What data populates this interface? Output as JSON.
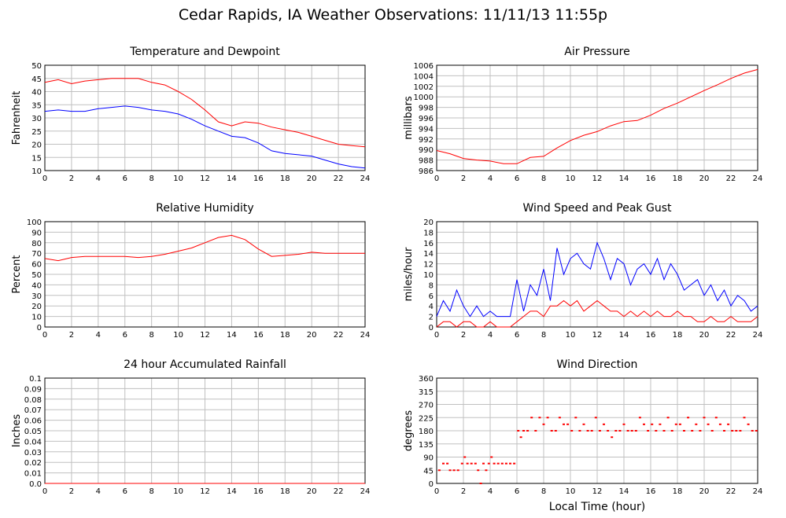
{
  "page_title": "Cedar Rapids, IA Weather Observations: 11/11/13 11:55p",
  "colors": {
    "red": "#ff0000",
    "blue": "#0000ff",
    "grid": "#c0c0c0",
    "frame": "#000000"
  },
  "chart_data": [
    {
      "id": "temp",
      "type": "line",
      "title": "Temperature and Dewpoint",
      "xlabel": "",
      "ylabel": "Fahrenheit",
      "xlim": [
        0,
        24
      ],
      "ylim": [
        10,
        50
      ],
      "xticks": [
        0,
        2,
        4,
        6,
        8,
        10,
        12,
        14,
        16,
        18,
        20,
        22,
        24
      ],
      "yticks": [
        10,
        15,
        20,
        25,
        30,
        35,
        40,
        45,
        50
      ],
      "series": [
        {
          "color": "#ff0000",
          "x": [
            0,
            1,
            2,
            3,
            4,
            5,
            6,
            7,
            8,
            9,
            10,
            11,
            12,
            13,
            14,
            15,
            16,
            17,
            18,
            19,
            20,
            21,
            22,
            23,
            24
          ],
          "values": [
            43.5,
            44.5,
            43,
            44,
            44.5,
            45,
            45,
            45,
            43.5,
            42.5,
            40,
            37,
            33,
            28.5,
            27,
            28.5,
            28,
            26.5,
            25.5,
            24.5,
            23,
            21.5,
            20,
            19.5,
            19
          ]
        },
        {
          "color": "#0000ff",
          "x": [
            0,
            1,
            2,
            3,
            4,
            5,
            6,
            7,
            8,
            9,
            10,
            11,
            12,
            13,
            14,
            15,
            16,
            17,
            18,
            19,
            20,
            21,
            22,
            23,
            24
          ],
          "values": [
            32.5,
            33,
            32.5,
            32.5,
            33.5,
            34,
            34.5,
            34,
            33,
            32.5,
            31.5,
            29.5,
            27,
            25,
            23,
            22.5,
            20.5,
            17.5,
            16.5,
            16,
            15.5,
            14,
            12.5,
            11.5,
            11
          ]
        }
      ]
    },
    {
      "id": "pressure",
      "type": "line",
      "title": "Air Pressure",
      "xlabel": "",
      "ylabel": "millibars",
      "xlim": [
        0,
        24
      ],
      "ylim": [
        986,
        1006
      ],
      "xticks": [
        0,
        2,
        4,
        6,
        8,
        10,
        12,
        14,
        16,
        18,
        20,
        22,
        24
      ],
      "yticks": [
        986,
        988,
        990,
        992,
        994,
        996,
        998,
        1000,
        1002,
        1004,
        1006
      ],
      "series": [
        {
          "color": "#ff0000",
          "x": [
            0,
            1,
            2,
            3,
            4,
            5,
            6,
            7,
            8,
            9,
            10,
            11,
            12,
            13,
            14,
            15,
            16,
            17,
            18,
            19,
            20,
            21,
            22,
            23,
            24
          ],
          "values": [
            989.8,
            989.2,
            988.3,
            988,
            987.8,
            987.3,
            987.3,
            988.5,
            988.7,
            990.3,
            991.7,
            992.7,
            993.4,
            994.5,
            995.3,
            995.5,
            996.5,
            997.8,
            998.8,
            1000,
            1001.2,
            1002.3,
            1003.5,
            1004.5,
            1005.2
          ]
        }
      ]
    },
    {
      "id": "rh",
      "type": "line",
      "title": "Relative Humidity",
      "xlabel": "",
      "ylabel": "Percent",
      "xlim": [
        0,
        24
      ],
      "ylim": [
        0,
        100
      ],
      "xticks": [
        0,
        2,
        4,
        6,
        8,
        10,
        12,
        14,
        16,
        18,
        20,
        22,
        24
      ],
      "yticks": [
        0,
        10,
        20,
        30,
        40,
        50,
        60,
        70,
        80,
        90,
        100
      ],
      "series": [
        {
          "color": "#ff0000",
          "x": [
            0,
            1,
            2,
            3,
            4,
            5,
            6,
            7,
            8,
            9,
            10,
            11,
            12,
            13,
            14,
            15,
            16,
            17,
            18,
            19,
            20,
            21,
            22,
            23,
            24
          ],
          "values": [
            65,
            63,
            66,
            67,
            67,
            67,
            67,
            66,
            67,
            69,
            72,
            75,
            80,
            85,
            87,
            83,
            74,
            67,
            68,
            69,
            71,
            70,
            70,
            70,
            70
          ]
        }
      ]
    },
    {
      "id": "wind",
      "type": "line",
      "title": "Wind Speed and Peak Gust",
      "xlabel": "",
      "ylabel": "miles/hour",
      "xlim": [
        0,
        24
      ],
      "ylim": [
        0,
        20
      ],
      "xticks": [
        0,
        2,
        4,
        6,
        8,
        10,
        12,
        14,
        16,
        18,
        20,
        22,
        24
      ],
      "yticks": [
        0,
        2,
        4,
        6,
        8,
        10,
        12,
        14,
        16,
        18,
        20
      ],
      "series": [
        {
          "color": "#0000ff",
          "x": [
            0,
            0.5,
            1,
            1.5,
            2,
            2.5,
            3,
            3.5,
            4,
            4.5,
            5,
            5.5,
            6,
            6.5,
            7,
            7.5,
            8,
            8.5,
            9,
            9.5,
            10,
            10.5,
            11,
            11.5,
            12,
            12.5,
            13,
            13.5,
            14,
            14.5,
            15,
            15.5,
            16,
            16.5,
            17,
            17.5,
            18,
            18.5,
            19,
            19.5,
            20,
            20.5,
            21,
            21.5,
            22,
            22.5,
            23,
            23.5,
            24
          ],
          "values": [
            2,
            5,
            3,
            7,
            4,
            2,
            4,
            2,
            3,
            2,
            2,
            2,
            9,
            3,
            8,
            6,
            11,
            5,
            15,
            10,
            13,
            14,
            12,
            11,
            16,
            13,
            9,
            13,
            12,
            8,
            11,
            12,
            10,
            13,
            9,
            12,
            10,
            7,
            8,
            9,
            6,
            8,
            5,
            7,
            4,
            6,
            5,
            3,
            4
          ]
        },
        {
          "color": "#ff0000",
          "x": [
            0,
            0.5,
            1,
            1.5,
            2,
            2.5,
            3,
            3.5,
            4,
            4.5,
            5,
            5.5,
            6,
            6.5,
            7,
            7.5,
            8,
            8.5,
            9,
            9.5,
            10,
            10.5,
            11,
            11.5,
            12,
            12.5,
            13,
            13.5,
            14,
            14.5,
            15,
            15.5,
            16,
            16.5,
            17,
            17.5,
            18,
            18.5,
            19,
            19.5,
            20,
            20.5,
            21,
            21.5,
            22,
            22.5,
            23,
            23.5,
            24
          ],
          "values": [
            0,
            1,
            1,
            0,
            1,
            1,
            0,
            0,
            1,
            0,
            0,
            0,
            1,
            2,
            3,
            3,
            2,
            4,
            4,
            5,
            4,
            5,
            3,
            4,
            5,
            4,
            3,
            3,
            2,
            3,
            2,
            3,
            2,
            3,
            2,
            2,
            3,
            2,
            2,
            1,
            1,
            2,
            1,
            1,
            2,
            1,
            1,
            1,
            2
          ]
        }
      ]
    },
    {
      "id": "rain",
      "type": "line",
      "title": "24 hour Accumulated Rainfall",
      "xlabel": "",
      "ylabel": "Inches",
      "xlim": [
        0,
        24
      ],
      "ylim": [
        0,
        0.1
      ],
      "xticks": [
        0,
        2,
        4,
        6,
        8,
        10,
        12,
        14,
        16,
        18,
        20,
        22,
        24
      ],
      "yticks": [
        "0.0",
        "0.01",
        "0.02",
        "0.03",
        "0.04",
        "0.05",
        "0.06",
        "0.07",
        "0.08",
        "0.09",
        "0.1"
      ],
      "series": [
        {
          "color": "#ff0000",
          "x": [
            0,
            24
          ],
          "values": [
            0,
            0
          ]
        }
      ]
    },
    {
      "id": "wdir",
      "type": "scatter",
      "title": "Wind Direction",
      "xlabel": "Local Time (hour)",
      "ylabel": "degrees",
      "xlim": [
        0,
        24
      ],
      "ylim": [
        0,
        360
      ],
      "xticks": [
        0,
        2,
        4,
        6,
        8,
        10,
        12,
        14,
        16,
        18,
        20,
        22,
        24
      ],
      "yticks": [
        0,
        45,
        90,
        135,
        180,
        225,
        270,
        315,
        360
      ],
      "series": [
        {
          "color": "#ff0000",
          "x": [
            0.2,
            0.5,
            0.8,
            1.0,
            1.3,
            1.6,
            1.9,
            2.1,
            2.3,
            2.6,
            2.9,
            3.1,
            3.3,
            3.5,
            3.7,
            3.9,
            4.1,
            4.3,
            4.6,
            4.9,
            5.2,
            5.5,
            5.8,
            6.1,
            6.3,
            6.5,
            6.8,
            7.1,
            7.4,
            7.7,
            8.0,
            8.3,
            8.6,
            8.9,
            9.2,
            9.5,
            9.8,
            10.1,
            10.4,
            10.7,
            11.0,
            11.3,
            11.6,
            11.9,
            12.2,
            12.5,
            12.8,
            13.1,
            13.4,
            13.7,
            14.0,
            14.3,
            14.6,
            14.9,
            15.2,
            15.5,
            15.8,
            16.1,
            16.4,
            16.7,
            17.0,
            17.3,
            17.6,
            17.9,
            18.2,
            18.5,
            18.8,
            19.1,
            19.4,
            19.7,
            20.0,
            20.3,
            20.6,
            20.9,
            21.2,
            21.5,
            21.8,
            22.1,
            22.4,
            22.7,
            23.0,
            23.3,
            23.6,
            23.9
          ],
          "values": [
            45,
            68,
            68,
            45,
            45,
            45,
            68,
            90,
            68,
            68,
            68,
            45,
            0,
            68,
            45,
            68,
            90,
            68,
            68,
            68,
            68,
            68,
            68,
            180,
            158,
            180,
            180,
            225,
            180,
            225,
            202,
            225,
            180,
            180,
            225,
            202,
            202,
            180,
            225,
            180,
            202,
            180,
            180,
            225,
            180,
            202,
            180,
            158,
            180,
            180,
            202,
            180,
            180,
            180,
            225,
            202,
            180,
            202,
            180,
            202,
            180,
            225,
            180,
            202,
            202,
            180,
            225,
            180,
            202,
            180,
            225,
            202,
            180,
            225,
            202,
            180,
            202,
            180,
            180,
            180,
            225,
            202,
            180,
            180
          ]
        }
      ]
    }
  ]
}
